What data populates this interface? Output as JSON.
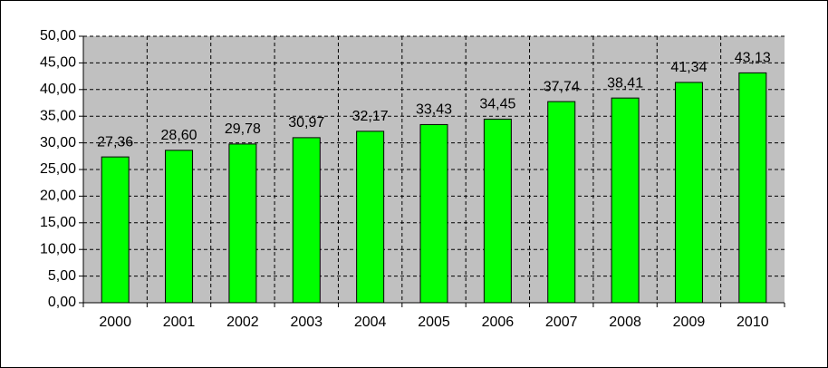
{
  "chart_data": {
    "type": "bar",
    "categories": [
      "2000",
      "2001",
      "2002",
      "2003",
      "2004",
      "2005",
      "2006",
      "2007",
      "2008",
      "2009",
      "2010"
    ],
    "values": [
      27.36,
      28.6,
      29.78,
      30.97,
      32.17,
      33.43,
      34.45,
      37.74,
      38.41,
      41.34,
      43.13
    ],
    "value_labels": [
      "27,36",
      "28,60",
      "29,78",
      "30,97",
      "32,17",
      "33,43",
      "34,45",
      "37,74",
      "38,41",
      "41,34",
      "43,13"
    ],
    "color": "#00ff00",
    "ylim": [
      0,
      50
    ],
    "yticks": [
      {
        "value": 0,
        "label": "0,00"
      },
      {
        "value": 5,
        "label": "5,00"
      },
      {
        "value": 10,
        "label": "10,00"
      },
      {
        "value": 15,
        "label": "15,00"
      },
      {
        "value": 20,
        "label": "20,00"
      },
      {
        "value": 25,
        "label": "25,00"
      },
      {
        "value": 30,
        "label": "30,00"
      },
      {
        "value": 35,
        "label": "35,00"
      },
      {
        "value": 40,
        "label": "40,00"
      },
      {
        "value": 45,
        "label": "45,00"
      },
      {
        "value": 50,
        "label": "50,00"
      }
    ],
    "grid": true
  }
}
